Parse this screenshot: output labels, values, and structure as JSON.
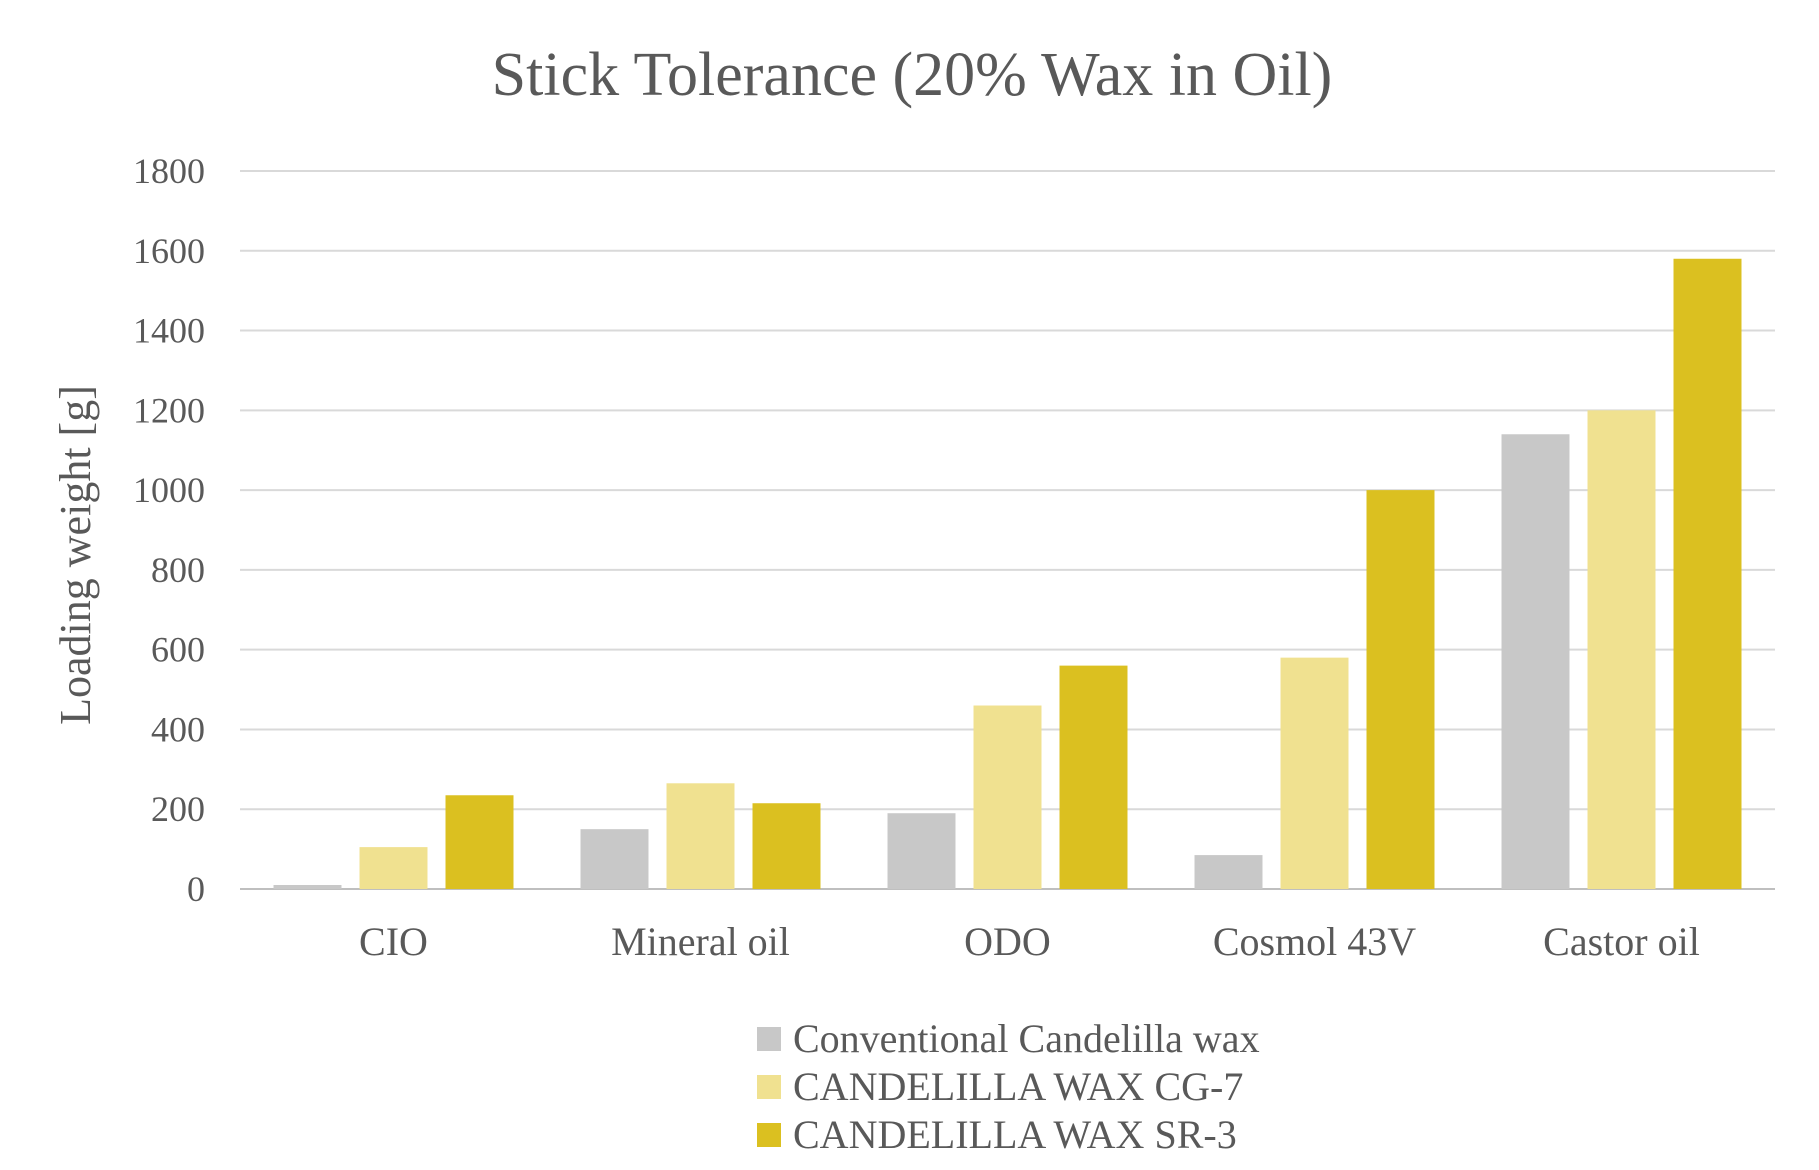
{
  "chart_data": {
    "type": "bar",
    "title": "Stick Tolerance (20% Wax in Oil)",
    "xlabel": "",
    "ylabel": "Loading weight [g]",
    "ylim": [
      0,
      1800
    ],
    "yticks": [
      0,
      200,
      400,
      600,
      800,
      1000,
      1200,
      1400,
      1600,
      1800
    ],
    "grid": true,
    "legend_position": "bottom",
    "categories": [
      "CIO",
      "Mineral oil",
      "ODO",
      "Cosmol 43V",
      "Castor oil"
    ],
    "series": [
      {
        "name": "Conventional Candelilla wax",
        "color": "#c8c8c8",
        "values": [
          10,
          150,
          190,
          85,
          1140
        ]
      },
      {
        "name": "CANDELILLA WAX CG-7",
        "color": "#f0e190",
        "values": [
          105,
          265,
          460,
          580,
          1200
        ]
      },
      {
        "name": "CANDELILLA WAX SR-3",
        "color": "#dbc020",
        "values": [
          235,
          215,
          560,
          1000,
          1580
        ]
      }
    ]
  }
}
